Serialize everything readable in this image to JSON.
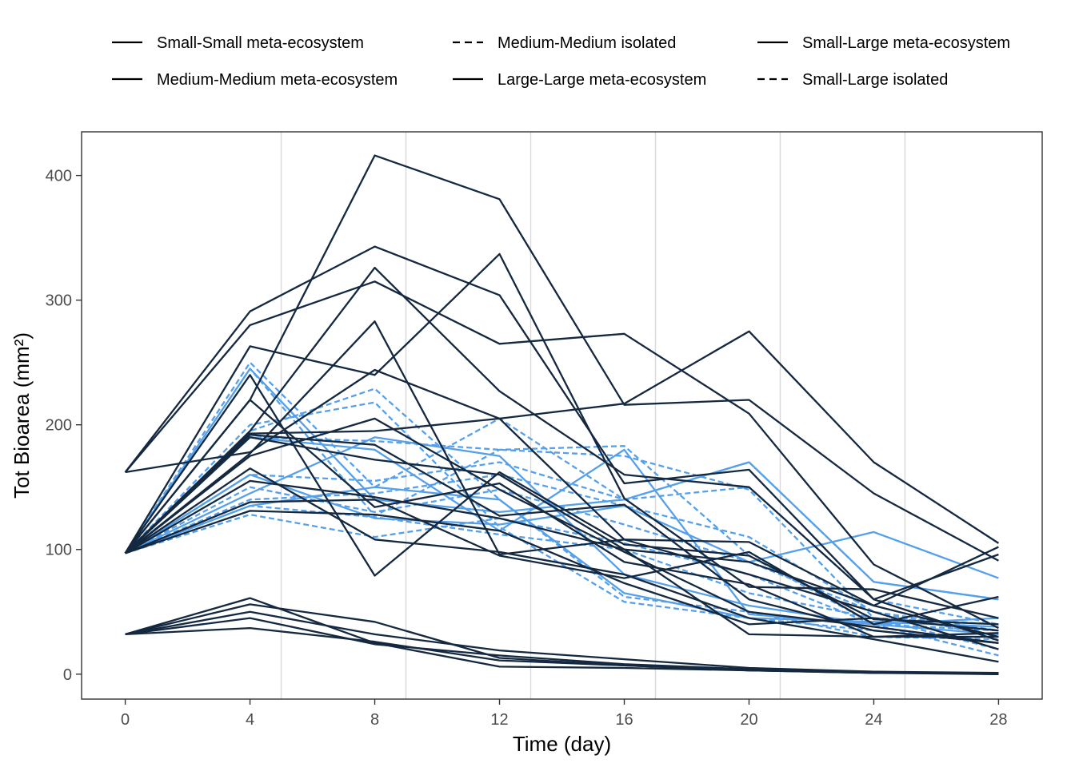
{
  "colors": {
    "meta": "#142840",
    "isolated": "#56a0ea",
    "axis": "#333333",
    "tick_text": "#4d4d4d",
    "grid": "#d9d9d9",
    "text": "#000000"
  },
  "legend": {
    "position": "top",
    "items": [
      {
        "label": "Small-Small meta-ecosystem",
        "linetype": "solid"
      },
      {
        "label": "Medium-Medium isolated",
        "linetype": "dashed"
      },
      {
        "label": "Small-Large meta-ecosystem",
        "linetype": "solid"
      },
      {
        "label": "Medium-Medium meta-ecosystem",
        "linetype": "solid"
      },
      {
        "label": "Large-Large meta-ecosystem",
        "linetype": "solid"
      },
      {
        "label": "Small-Large isolated",
        "linetype": "dashed"
      }
    ]
  },
  "chart_data": {
    "type": "line",
    "title": "",
    "xlabel": "Time (day)",
    "ylabel": "Tot Bioarea (mm²)",
    "x": [
      0,
      4,
      8,
      12,
      16,
      20,
      24,
      28
    ],
    "xlim": [
      -1.4,
      29.4
    ],
    "ylim": [
      -20,
      435
    ],
    "x_ticks": [
      "0",
      "4",
      "8",
      "12",
      "16",
      "20",
      "24",
      "28"
    ],
    "y_ticks": [
      "0",
      "100",
      "200",
      "300",
      "400"
    ],
    "vertical_grid_x": [
      5,
      9,
      13,
      17,
      21,
      25
    ],
    "grid": "vertical lines only",
    "series": [
      {
        "group": "meta",
        "dash": false,
        "values": [
          162,
          291,
          343,
          304,
          153,
          164,
          60,
          96
        ]
      },
      {
        "group": "meta",
        "dash": false,
        "values": [
          162,
          280,
          315,
          265,
          273,
          209,
          88,
          37
        ]
      },
      {
        "group": "meta",
        "dash": false,
        "values": [
          162,
          178,
          244,
          205,
          217,
          275,
          170,
          105
        ]
      },
      {
        "group": "meta",
        "dash": false,
        "values": [
          97,
          220,
          416,
          381,
          216,
          220,
          145,
          91
        ]
      },
      {
        "group": "meta",
        "dash": false,
        "values": [
          97,
          195,
          326,
          227,
          160,
          150,
          60,
          27
        ]
      },
      {
        "group": "meta",
        "dash": false,
        "values": [
          97,
          177,
          283,
          96,
          108,
          106,
          55,
          102
        ]
      },
      {
        "group": "meta",
        "dash": false,
        "values": [
          97,
          263,
          240,
          337,
          141,
          70,
          68,
          45
        ]
      },
      {
        "group": "meta",
        "dash": false,
        "values": [
          97,
          240,
          79,
          162,
          104,
          95,
          44,
          40
        ]
      },
      {
        "group": "meta",
        "dash": false,
        "values": [
          97,
          192,
          184,
          127,
          136,
          60,
          35,
          25
        ]
      },
      {
        "group": "meta",
        "dash": false,
        "values": [
          97,
          138,
          140,
          95,
          77,
          98,
          40,
          62
        ]
      },
      {
        "group": "meta",
        "dash": false,
        "values": [
          97,
          165,
          108,
          98,
          80,
          45,
          28,
          10
        ]
      },
      {
        "group": "meta",
        "dash": false,
        "values": [
          97,
          220,
          134,
          153,
          90,
          72,
          30,
          30
        ]
      },
      {
        "group": "meta",
        "dash": false,
        "values": [
          97,
          193,
          195,
          205,
          108,
          80,
          50,
          20
        ]
      },
      {
        "group": "meta",
        "dash": false,
        "values": [
          97,
          131,
          128,
          115,
          73,
          40,
          45,
          35
        ]
      },
      {
        "group": "meta",
        "dash": false,
        "values": [
          97,
          190,
          172,
          160,
          100,
          32,
          30,
          33
        ]
      },
      {
        "group": "meta",
        "dash": false,
        "values": [
          97,
          155,
          142,
          125,
          100,
          90,
          55,
          30
        ]
      },
      {
        "group": "meta",
        "dash": false,
        "values": [
          97,
          175,
          205,
          148,
          98,
          50,
          38,
          25
        ]
      },
      {
        "group": "meta",
        "dash": false,
        "values": [
          32,
          61,
          25,
          6,
          5,
          3,
          1,
          1
        ]
      },
      {
        "group": "meta",
        "dash": false,
        "values": [
          32,
          56,
          42,
          13,
          7,
          3,
          1,
          0
        ]
      },
      {
        "group": "meta",
        "dash": false,
        "values": [
          32,
          50,
          32,
          19,
          12,
          5,
          2,
          0
        ]
      },
      {
        "group": "meta",
        "dash": false,
        "values": [
          32,
          45,
          24,
          15,
          8,
          4,
          1,
          1
        ]
      },
      {
        "group": "meta",
        "dash": false,
        "values": [
          32,
          37,
          26,
          11,
          7,
          3,
          2,
          1
        ]
      },
      {
        "group": "isolated",
        "dash": true,
        "values": [
          97,
          250,
          150,
          205,
          140,
          150,
          60,
          40
        ]
      },
      {
        "group": "isolated",
        "dash": true,
        "values": [
          97,
          245,
          127,
          180,
          183,
          95,
          40,
          35
        ]
      },
      {
        "group": "isolated",
        "dash": true,
        "values": [
          97,
          195,
          229,
          140,
          62,
          50,
          30,
          28
        ]
      },
      {
        "group": "isolated",
        "dash": true,
        "values": [
          97,
          200,
          218,
          118,
          58,
          45,
          35,
          25
        ]
      },
      {
        "group": "isolated",
        "dash": true,
        "values": [
          97,
          190,
          187,
          180,
          175,
          148,
          45,
          40
        ]
      },
      {
        "group": "isolated",
        "dash": true,
        "values": [
          97,
          160,
          155,
          170,
          140,
          170,
          74,
          60
        ]
      },
      {
        "group": "isolated",
        "dash": true,
        "values": [
          97,
          150,
          130,
          148,
          120,
          90,
          50,
          30
        ]
      },
      {
        "group": "isolated",
        "dash": true,
        "values": [
          97,
          135,
          126,
          112,
          100,
          65,
          45,
          20
        ]
      },
      {
        "group": "isolated",
        "dash": true,
        "values": [
          97,
          128,
          110,
          125,
          105,
          80,
          40,
          15
        ]
      },
      {
        "group": "isolated",
        "dash": true,
        "values": [
          97,
          140,
          145,
          160,
          135,
          110,
          50,
          35
        ]
      },
      {
        "group": "isolated",
        "dash": false,
        "values": [
          97,
          245,
          140,
          130,
          140,
          170,
          74,
          60
        ]
      },
      {
        "group": "isolated",
        "dash": false,
        "values": [
          97,
          160,
          125,
          120,
          135,
          90,
          114,
          77
        ]
      },
      {
        "group": "isolated",
        "dash": false,
        "values": [
          97,
          145,
          190,
          175,
          80,
          55,
          40,
          45
        ]
      },
      {
        "group": "isolated",
        "dash": false,
        "values": [
          97,
          190,
          180,
          115,
          180,
          48,
          40,
          32
        ]
      },
      {
        "group": "isolated",
        "dash": false,
        "values": [
          97,
          135,
          150,
          140,
          65,
          45,
          42,
          38
        ]
      }
    ]
  }
}
